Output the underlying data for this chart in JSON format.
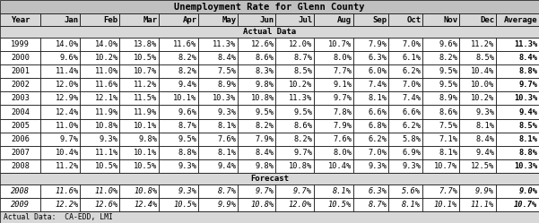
{
  "title": "Unemployment Rate for Glenn County",
  "headers": [
    "Year",
    "Jan",
    "Feb",
    "Mar",
    "Apr",
    "May",
    "Jun",
    "Jul",
    "Aug",
    "Sep",
    "Oct",
    "Nov",
    "Dec",
    "Average"
  ],
  "actual_label": "Actual Data",
  "forecast_label": "Forecast",
  "footer": "Actual Data:  CA-EDD, LMI",
  "actual_data": [
    [
      "1999",
      "14.0%",
      "14.0%",
      "13.8%",
      "11.6%",
      "11.3%",
      "12.6%",
      "12.0%",
      "10.7%",
      "7.9%",
      "7.0%",
      "9.6%",
      "11.2%",
      "11.3%"
    ],
    [
      "2000",
      "9.6%",
      "10.2%",
      "10.5%",
      "8.2%",
      "8.4%",
      "8.6%",
      "8.7%",
      "8.0%",
      "6.3%",
      "6.1%",
      "8.2%",
      "8.5%",
      "8.4%"
    ],
    [
      "2001",
      "11.4%",
      "11.0%",
      "10.7%",
      "8.2%",
      "7.5%",
      "8.3%",
      "8.5%",
      "7.7%",
      "6.0%",
      "6.2%",
      "9.5%",
      "10.4%",
      "8.8%"
    ],
    [
      "2002",
      "12.0%",
      "11.6%",
      "11.2%",
      "9.4%",
      "8.9%",
      "9.8%",
      "10.2%",
      "9.1%",
      "7.4%",
      "7.0%",
      "9.5%",
      "10.0%",
      "9.7%"
    ],
    [
      "2003",
      "12.9%",
      "12.1%",
      "11.5%",
      "10.1%",
      "10.3%",
      "10.8%",
      "11.3%",
      "9.7%",
      "8.1%",
      "7.4%",
      "8.9%",
      "10.2%",
      "10.3%"
    ],
    [
      "2004",
      "12.4%",
      "11.9%",
      "11.9%",
      "9.6%",
      "9.3%",
      "9.5%",
      "9.5%",
      "7.8%",
      "6.6%",
      "6.6%",
      "8.6%",
      "9.3%",
      "9.4%"
    ],
    [
      "2005",
      "11.0%",
      "10.8%",
      "10.1%",
      "8.7%",
      "8.1%",
      "8.2%",
      "8.6%",
      "7.9%",
      "6.8%",
      "6.2%",
      "7.5%",
      "8.1%",
      "8.5%"
    ],
    [
      "2006",
      "9.7%",
      "9.3%",
      "9.8%",
      "9.5%",
      "7.6%",
      "7.9%",
      "8.2%",
      "7.6%",
      "6.2%",
      "5.8%",
      "7.1%",
      "8.4%",
      "8.1%"
    ],
    [
      "2007",
      "10.4%",
      "11.1%",
      "10.1%",
      "8.8%",
      "8.1%",
      "8.4%",
      "9.7%",
      "8.0%",
      "7.0%",
      "6.9%",
      "8.1%",
      "9.4%",
      "8.8%"
    ],
    [
      "2008",
      "11.2%",
      "10.5%",
      "10.5%",
      "9.3%",
      "9.4%",
      "9.8%",
      "10.8%",
      "10.4%",
      "9.3%",
      "9.3%",
      "10.7%",
      "12.5%",
      "10.3%"
    ]
  ],
  "forecast_data": [
    [
      "2008",
      "11.6%",
      "11.0%",
      "10.8%",
      "9.3%",
      "8.7%",
      "9.7%",
      "9.7%",
      "8.1%",
      "6.3%",
      "5.6%",
      "7.7%",
      "9.9%",
      "9.0%"
    ],
    [
      "2009",
      "12.2%",
      "12.6%",
      "12.4%",
      "10.5%",
      "9.9%",
      "10.8%",
      "12.0%",
      "10.5%",
      "8.7%",
      "8.1%",
      "10.1%",
      "11.1%",
      "10.7%"
    ]
  ],
  "title_bg": "#c0c0c0",
  "header_bg": "#d8d8d8",
  "section_bg": "#d8d8d8",
  "row_bg": "#ffffff",
  "forecast_bg": "#ffffff",
  "footer_bg": "#d8d8d8",
  "border_color": "#000000",
  "title_fontsize": 7.5,
  "header_fontsize": 6.5,
  "data_fontsize": 6.2,
  "section_fontsize": 6.5,
  "footer_fontsize": 5.8,
  "col_widths_raw": [
    3.0,
    2.9,
    2.9,
    2.9,
    2.9,
    2.9,
    2.8,
    2.8,
    2.9,
    2.6,
    2.5,
    2.7,
    2.7,
    3.2
  ]
}
